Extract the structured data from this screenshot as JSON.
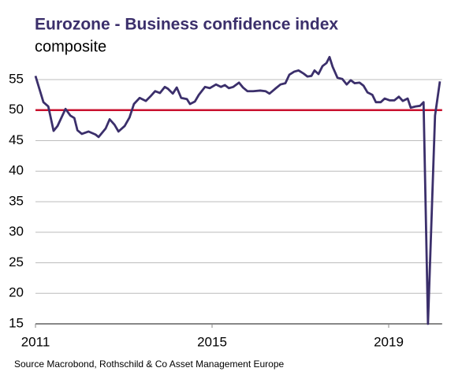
{
  "chart_data": {
    "type": "line",
    "title": "Eurozone - Business confidence index",
    "subtitle": "composite",
    "source": "Source Macrobond, Rothschild & Co Asset Management Europe",
    "color": "#3b2f6b",
    "x": [
      2011.0,
      2011.18,
      2011.29,
      2011.41,
      2011.5,
      2011.68,
      2011.79,
      2011.88,
      2011.95,
      2012.05,
      2012.2,
      2012.36,
      2012.43,
      2012.59,
      2012.68,
      2012.79,
      2012.88,
      2013.02,
      2013.13,
      2013.23,
      2013.36,
      2013.5,
      2013.61,
      2013.71,
      2013.82,
      2013.93,
      2014.0,
      2014.11,
      2014.2,
      2014.3,
      2014.43,
      2014.5,
      2014.61,
      2014.7,
      2014.84,
      2014.95,
      2015.09,
      2015.2,
      2015.29,
      2015.38,
      2015.48,
      2015.61,
      2015.7,
      2015.8,
      2015.93,
      2016.09,
      2016.21,
      2016.3,
      2016.43,
      2016.55,
      2016.66,
      2016.75,
      2016.86,
      2016.96,
      2017.07,
      2017.16,
      2017.25,
      2017.32,
      2017.41,
      2017.5,
      2017.59,
      2017.66,
      2017.73,
      2017.84,
      2017.95,
      2018.05,
      2018.14,
      2018.23,
      2018.34,
      2018.43,
      2018.52,
      2018.63,
      2018.71,
      2018.82,
      2018.91,
      2019.02,
      2019.13,
      2019.23,
      2019.32,
      2019.43,
      2019.5,
      2019.61,
      2019.71,
      2019.79,
      2019.89,
      2020.05,
      2020.16
    ],
    "values": [
      55.6,
      51.3,
      50.6,
      46.6,
      47.4,
      50.2,
      49.1,
      48.7,
      46.7,
      46.1,
      46.5,
      46.0,
      45.6,
      47.0,
      48.5,
      47.6,
      46.5,
      47.4,
      48.8,
      51.0,
      52.0,
      51.5,
      52.3,
      53.1,
      52.8,
      53.8,
      53.5,
      52.7,
      53.7,
      52.0,
      51.8,
      51.0,
      51.4,
      52.5,
      53.8,
      53.6,
      54.2,
      53.8,
      54.1,
      53.6,
      53.8,
      54.5,
      53.7,
      53.1,
      53.1,
      53.2,
      53.1,
      52.7,
      53.5,
      54.2,
      54.4,
      55.8,
      56.3,
      56.5,
      56.0,
      55.5,
      55.6,
      56.5,
      55.9,
      57.2,
      57.7,
      58.7,
      57.1,
      55.3,
      55.1,
      54.2,
      54.9,
      54.4,
      54.5,
      54.0,
      52.9,
      52.5,
      51.3,
      51.3,
      51.9,
      51.6,
      51.6,
      52.2,
      51.5,
      51.9,
      50.4,
      50.6,
      50.7,
      51.3,
      15.0,
      49.1,
      54.7
    ],
    "reference_line": {
      "value": 50,
      "color": "#c8102e"
    },
    "xlim": [
      2011,
      2020.3
    ],
    "xticks": [
      2011,
      2015,
      2019
    ],
    "ylim": [
      15,
      60
    ],
    "yticks": [
      15,
      20,
      25,
      30,
      35,
      40,
      45,
      50,
      55
    ],
    "grid": true
  }
}
